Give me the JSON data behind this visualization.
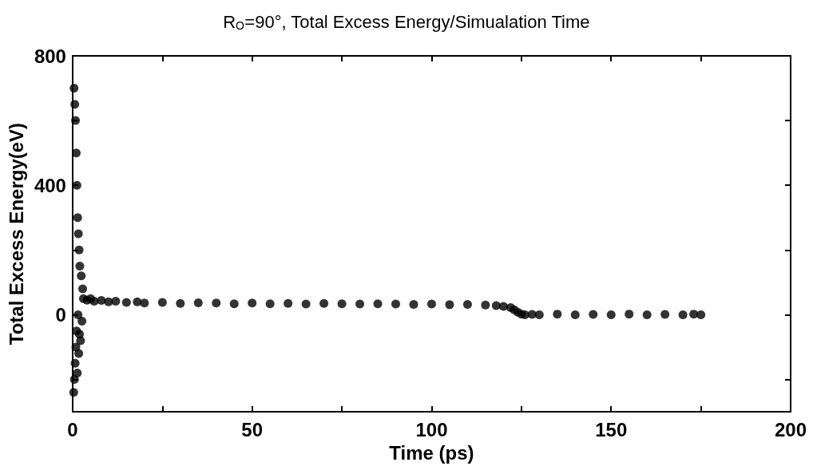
{
  "chart_data": {
    "type": "scatter",
    "title": "R$_{O}$=90°, Total Excess Energy/Simualation Time",
    "xlabel": "Time (ps)",
    "ylabel": "Total Excess Energy(eV)",
    "x": [
      0.3,
      0.4,
      0.5,
      0.6,
      0.7,
      0.8,
      0.9,
      1.0,
      1.1,
      1.2,
      1.3,
      1.4,
      1.5,
      1.6,
      1.7,
      1.8,
      1.9,
      2.0,
      2.2,
      2.4,
      2.6,
      2.8,
      3,
      4,
      5,
      6,
      8,
      10,
      12,
      15,
      18,
      20,
      25,
      30,
      35,
      40,
      45,
      50,
      55,
      60,
      65,
      70,
      75,
      80,
      85,
      90,
      95,
      100,
      105,
      110,
      115,
      118,
      120,
      122,
      123,
      124,
      125,
      126,
      128,
      130,
      135,
      140,
      145,
      150,
      155,
      160,
      165,
      170,
      173,
      175
    ],
    "values": [
      -240,
      700,
      -200,
      650,
      -150,
      600,
      -100,
      500,
      -50,
      400,
      -180,
      300,
      0,
      250,
      -120,
      200,
      -60,
      150,
      -80,
      120,
      -20,
      80,
      50,
      45,
      50,
      42,
      44,
      40,
      42,
      38,
      40,
      36,
      38,
      35,
      37,
      36,
      34,
      36,
      34,
      35,
      33,
      35,
      34,
      33,
      34,
      33,
      32,
      33,
      31,
      32,
      30,
      28,
      26,
      22,
      15,
      8,
      2,
      0,
      1,
      0,
      2,
      0,
      1,
      0,
      2,
      0,
      1,
      0,
      2,
      0
    ],
    "color": "#000000",
    "marker": "circle",
    "xlim": [
      0,
      200
    ],
    "xticks": [
      0,
      {
        "value": 25,
        "label": null
      },
      50,
      {
        "value": 75,
        "label": null
      },
      100,
      {
        "value": 125,
        "label": null
      },
      150,
      {
        "value": 175,
        "label": null
      },
      200
    ],
    "ylim": [
      -300,
      800
    ],
    "yticks": [
      {
        "value": -200,
        "label": null
      },
      0,
      {
        "value": 200,
        "label": null
      },
      400,
      {
        "value": 600,
        "label": null
      },
      800
    ],
    "grid": false
  }
}
